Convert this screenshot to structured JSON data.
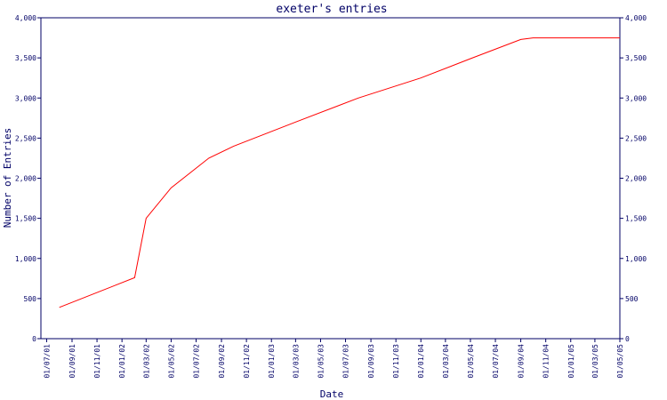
{
  "chart_data": {
    "type": "line",
    "title": "exeter's entries",
    "xlabel": "Date",
    "ylabel": "Number of Entries",
    "ylim": [
      0,
      4000
    ],
    "y_ticks": [
      0,
      500,
      1000,
      1500,
      2000,
      2500,
      3000,
      3500,
      4000
    ],
    "y_tick_labels": [
      "0",
      "500",
      "1,000",
      "1,500",
      "2,000",
      "2,500",
      "3,000",
      "3,500",
      "4,000"
    ],
    "y_axis_sides": [
      "left",
      "right"
    ],
    "x_tick_labels": [
      "01/07/01",
      "01/09/01",
      "01/11/01",
      "01/01/02",
      "01/03/02",
      "01/05/02",
      "01/07/02",
      "01/09/02",
      "01/11/02",
      "01/01/03",
      "01/03/03",
      "01/05/03",
      "01/07/03",
      "01/09/03",
      "01/11/03",
      "01/01/04",
      "01/03/04",
      "01/05/04",
      "01/07/04",
      "01/09/04",
      "01/11/04",
      "01/01/05",
      "01/03/05",
      "01/05/05"
    ],
    "grid": false,
    "line_color": "#ff0000",
    "axis_color": "#000066",
    "series": [
      {
        "x": [
          "01/08/01",
          "01/02/02",
          "01/03/02",
          "01/05/02",
          "01/08/02",
          "01/10/02",
          "01/03/03",
          "01/08/03",
          "01/01/04",
          "01/05/04",
          "01/09/04",
          "01/10/04",
          "01/05/05"
        ],
        "values": [
          390,
          760,
          1500,
          1880,
          2250,
          2400,
          2700,
          3000,
          3250,
          3490,
          3730,
          3750,
          3750
        ]
      }
    ]
  }
}
